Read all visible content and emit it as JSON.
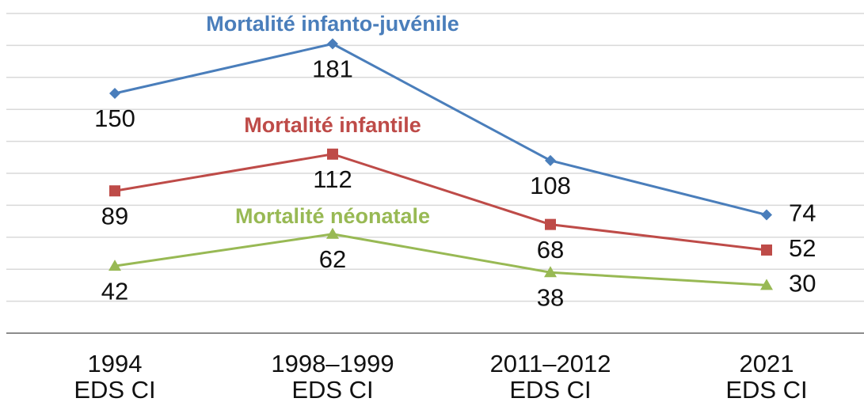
{
  "chart_data": {
    "type": "line",
    "categories": [
      [
        "1994",
        "EDS CI"
      ],
      [
        "1998–1999",
        "EDS CI"
      ],
      [
        "2011–2012",
        "EDS CI"
      ],
      [
        "2021",
        "EDS CI"
      ]
    ],
    "series": [
      {
        "name": "Mortalité infanto-juvénile",
        "color": "#4a7ebb",
        "marker": "diamond",
        "values": [
          150,
          181,
          108,
          74
        ]
      },
      {
        "name": "Mortalité infantile",
        "color": "#be4b48",
        "marker": "square",
        "values": [
          89,
          112,
          68,
          52
        ]
      },
      {
        "name": "Mortalité néonatale",
        "color": "#98b954",
        "marker": "triangle",
        "values": [
          42,
          62,
          38,
          30
        ]
      }
    ],
    "ylim": [
      0,
      200
    ],
    "yticks": [
      0,
      20,
      40,
      60,
      80,
      100,
      120,
      140,
      160,
      180,
      200
    ],
    "grid": true
  }
}
